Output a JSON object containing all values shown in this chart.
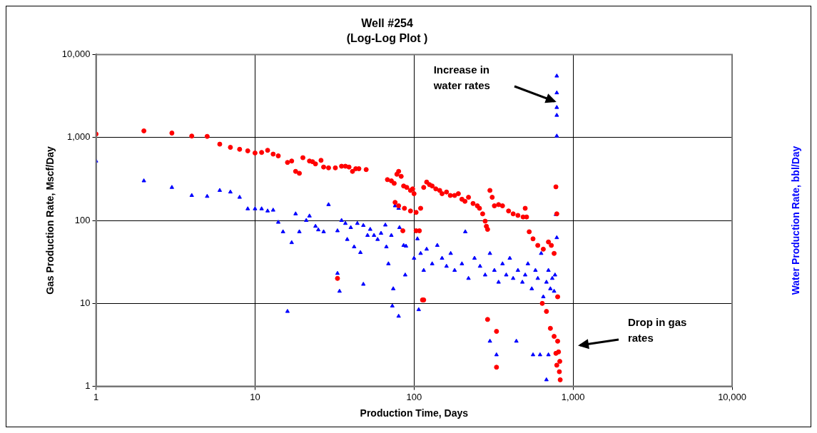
{
  "chart_data": {
    "type": "scatter",
    "title": "Well #254",
    "subtitle": "(Log-Log Plot )",
    "xlabel": "Production Time, Days",
    "ylabel": "Gas Production Rate, Mscf/Day",
    "y2label": "Water Production Rate, bbl/Day",
    "log": "xy",
    "grid": true,
    "xlim": [
      1,
      10000
    ],
    "xticks": [
      1,
      10,
      100,
      {
        "value": 1000,
        "label": "1,000"
      },
      {
        "value": 10000,
        "label": "10,000"
      }
    ],
    "ylim": [
      1,
      10000
    ],
    "yticks": [
      1,
      10,
      100,
      {
        "value": 1000,
        "label": "1,000"
      },
      {
        "value": 10000,
        "label": "10,000"
      }
    ],
    "annotations": [
      "Increase in water rates",
      "Drop in gas rates"
    ],
    "series": [
      {
        "color": "#ff0000",
        "marker": "circle",
        "x": [
          1,
          2,
          3,
          4,
          5,
          6,
          7,
          8,
          9,
          10,
          11,
          12,
          13,
          14,
          16,
          17,
          18,
          19,
          20,
          22,
          23,
          24,
          26,
          27,
          29,
          32,
          35,
          37,
          39,
          41,
          43,
          45,
          50,
          33,
          68,
          72,
          75,
          78,
          80,
          83,
          86,
          90,
          95,
          98,
          100,
          76,
          80,
          87,
          95,
          103,
          110,
          85,
          103,
          108,
          113,
          115,
          120,
          125,
          130,
          137,
          145,
          150,
          160,
          169,
          180,
          190,
          200,
          209,
          220,
          235,
          250,
          258,
          270,
          280,
          285,
          290,
          300,
          310,
          320,
          340,
          360,
          393,
          420,
          450,
          485,
          500,
          510,
          530,
          560,
          600,
          650,
          700,
          730,
          760,
          780,
          790,
          800,
          290,
          330,
          330,
          115,
          640,
          680,
          720,
          760,
          780,
          790,
          800,
          810,
          820,
          830,
          825
        ],
        "values": [
          1100,
          1200,
          1130,
          1040,
          1030,
          830,
          760,
          720,
          690,
          650,
          660,
          700,
          630,
          600,
          500,
          520,
          390,
          370,
          570,
          520,
          510,
          480,
          530,
          440,
          430,
          430,
          450,
          450,
          440,
          390,
          420,
          420,
          410,
          20,
          310,
          300,
          280,
          360,
          390,
          340,
          260,
          250,
          230,
          240,
          210,
          165,
          150,
          140,
          130,
          125,
          140,
          75,
          75,
          75,
          11,
          250,
          290,
          270,
          260,
          240,
          230,
          210,
          220,
          200,
          200,
          210,
          180,
          170,
          190,
          160,
          150,
          140,
          120,
          98,
          85,
          78,
          230,
          190,
          150,
          155,
          150,
          130,
          120,
          115,
          110,
          140,
          110,
          73,
          60,
          50,
          45,
          55,
          50,
          40,
          254,
          120,
          12,
          6.4,
          4.6,
          1.7,
          11,
          10,
          8,
          5,
          4,
          2.5,
          1.8,
          3.5,
          2.6,
          1.5,
          1.2,
          2
        ]
      },
      {
        "color": "#0000ff",
        "marker": "triangle",
        "x": [
          1,
          2,
          3,
          4,
          5,
          6,
          7,
          8,
          9,
          10,
          11,
          12,
          13,
          14,
          15,
          16,
          17,
          18,
          19,
          21,
          22,
          24,
          25,
          27,
          29,
          33,
          35,
          33,
          34,
          37,
          38,
          40,
          42,
          44,
          46,
          48,
          48,
          51,
          53,
          56,
          59,
          62,
          66,
          67,
          72,
          69,
          74,
          73,
          80,
          76,
          80,
          81,
          86,
          89,
          88,
          100,
          105,
          110,
          115,
          120,
          130,
          140,
          150,
          160,
          170,
          180,
          200,
          210,
          220,
          240,
          260,
          280,
          300,
          320,
          340,
          360,
          380,
          400,
          420,
          450,
          480,
          500,
          520,
          550,
          580,
          600,
          630,
          650,
          680,
          700,
          720,
          740,
          760,
          107,
          300,
          330,
          440,
          560,
          620,
          680,
          700,
          790,
          790,
          790,
          790,
          790,
          780,
          790,
          770
        ],
        "values": [
          520,
          300,
          250,
          200,
          195,
          230,
          220,
          190,
          138,
          138,
          138,
          130,
          133,
          95,
          73,
          8,
          54,
          120,
          73,
          100,
          113,
          85,
          77,
          73,
          155,
          75,
          100,
          23,
          14,
          92,
          59,
          82,
          48,
          92,
          41,
          17,
          87,
          66,
          78,
          66,
          59,
          70,
          88,
          48,
          66,
          30,
          15,
          9.3,
          7,
          150,
          140,
          82,
          50,
          49,
          22,
          35,
          60,
          40,
          25,
          45,
          30,
          50,
          35,
          28,
          40,
          25,
          30,
          73,
          20,
          35,
          28,
          22,
          40,
          25,
          18,
          30,
          22,
          35,
          20,
          25,
          18,
          22,
          30,
          15,
          25,
          20,
          40,
          12,
          18,
          25,
          15,
          20,
          14,
          8.4,
          3.5,
          2.4,
          3.5,
          2.4,
          2.4,
          1.2,
          2.4,
          5500,
          3450,
          2300,
          1850,
          1040,
          118,
          62,
          22
        ]
      }
    ]
  }
}
